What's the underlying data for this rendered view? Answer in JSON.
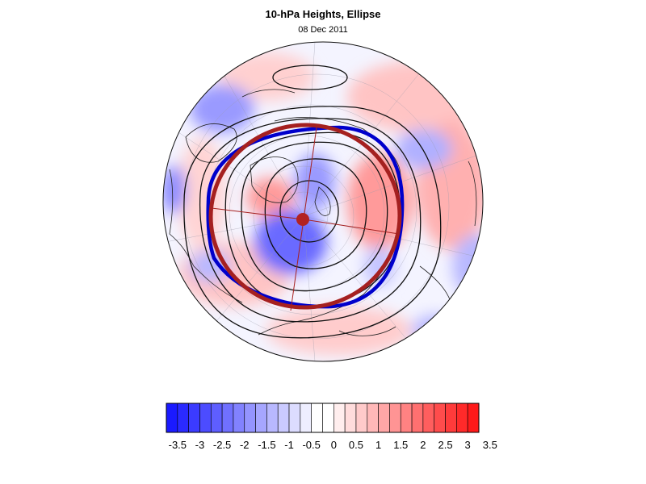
{
  "header": {
    "title": "10-hPa Heights, Ellipse",
    "date": "08 Dec 2011"
  },
  "colorbar": {
    "labels": [
      "-3.5",
      "-3",
      "-2.5",
      "-2",
      "-1.5",
      "-1",
      "-0.5",
      "0",
      "0.5",
      "1",
      "1.5",
      "2",
      "2.5",
      "3",
      "3.5"
    ],
    "colors": [
      "#1a1aff",
      "#2a2aff",
      "#3b3bff",
      "#4c4cff",
      "#5e5eff",
      "#7070ff",
      "#8282ff",
      "#9494ff",
      "#a6a6ff",
      "#b8b8ff",
      "#cacaff",
      "#dcdcff",
      "#eeeeff",
      "#ffffff",
      "#ffffff",
      "#ffeeee",
      "#ffdcdc",
      "#ffcaca",
      "#ffb8b8",
      "#ffa6a6",
      "#ff9494",
      "#ff8282",
      "#ff7070",
      "#ff5e5e",
      "#ff4c4c",
      "#ff3b3b",
      "#ff2a2a",
      "#ff1a1a"
    ]
  },
  "map": {
    "projection": "orthographic-north-polar",
    "blue_ellipse_color": "#0000cc",
    "red_ellipse_color": "#a52020",
    "center_marker_color": "#b22222"
  }
}
